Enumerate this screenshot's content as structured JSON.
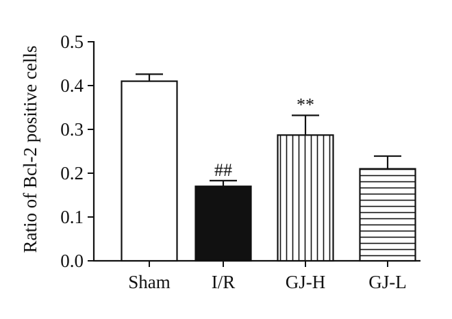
{
  "chart_data": {
    "type": "bar",
    "categories": [
      "Sham",
      "I/R",
      "GJ-H",
      "GJ-L"
    ],
    "values": [
      0.41,
      0.17,
      0.287,
      0.21
    ],
    "errors": [
      0.016,
      0.013,
      0.045,
      0.029
    ],
    "annotations": [
      "",
      "##",
      "**",
      ""
    ],
    "fills": [
      "white",
      "solid-black",
      "vertical-lines",
      "horizontal-lines"
    ],
    "title": "",
    "xlabel": "",
    "ylabel": "Ratio of Bcl-2 positive cells",
    "ylim": [
      0,
      0.5
    ],
    "yticks": [
      "0.0",
      "0.1",
      "0.2",
      "0.3",
      "0.4",
      "0.5"
    ],
    "grid": false,
    "colors": {
      "line": "#111111",
      "background": "#ffffff"
    }
  }
}
